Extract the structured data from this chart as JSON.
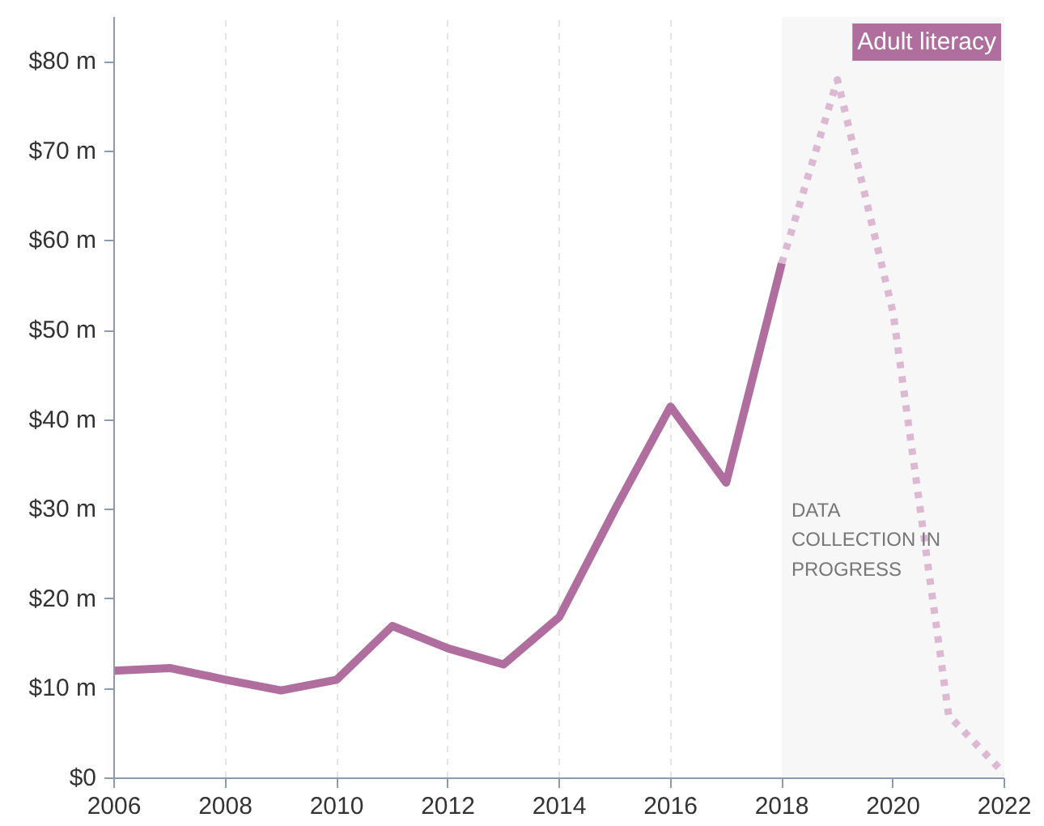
{
  "chart_data": {
    "type": "line",
    "x": [
      2006,
      2007,
      2008,
      2009,
      2010,
      2011,
      2012,
      2013,
      2014,
      2015,
      2016,
      2017,
      2018
    ],
    "series": [
      {
        "name": "Adult literacy",
        "color": "#b06e9e",
        "line_style": "solid",
        "values": [
          12,
          12.3,
          11,
          9.8,
          11,
          17,
          14.5,
          12.7,
          18,
          30,
          41.5,
          33,
          57.5
        ]
      },
      {
        "x": [
          2018,
          2019,
          2020,
          2021,
          2022
        ],
        "color": "#dcb8d3",
        "line_style": "dotted",
        "values": [
          57.5,
          78,
          52,
          7,
          0.5
        ]
      }
    ],
    "xlim": [
      2006,
      2022
    ],
    "xticks": [
      2006,
      2008,
      2010,
      2012,
      2014,
      2016,
      2018,
      2020,
      2022
    ],
    "ylim": [
      0,
      85
    ],
    "yticks": [
      {
        "value": 0,
        "label": "$0"
      },
      {
        "value": 10,
        "label": "$10 m"
      },
      {
        "value": 20,
        "label": "$20 m"
      },
      {
        "value": 30,
        "label": "$30 m"
      },
      {
        "value": 40,
        "label": "$40 m"
      },
      {
        "value": 50,
        "label": "$50 m"
      },
      {
        "value": 60,
        "label": "$60 m"
      },
      {
        "value": 70,
        "label": "$70 m"
      },
      {
        "value": 80,
        "label": "$80 m"
      }
    ],
    "bands": [
      {
        "axis": "x",
        "from": 2018,
        "to": 2022,
        "label": "DATA COLLECTION IN PROGRESS",
        "color": "#f7f7f7"
      }
    ],
    "grid": "x"
  }
}
